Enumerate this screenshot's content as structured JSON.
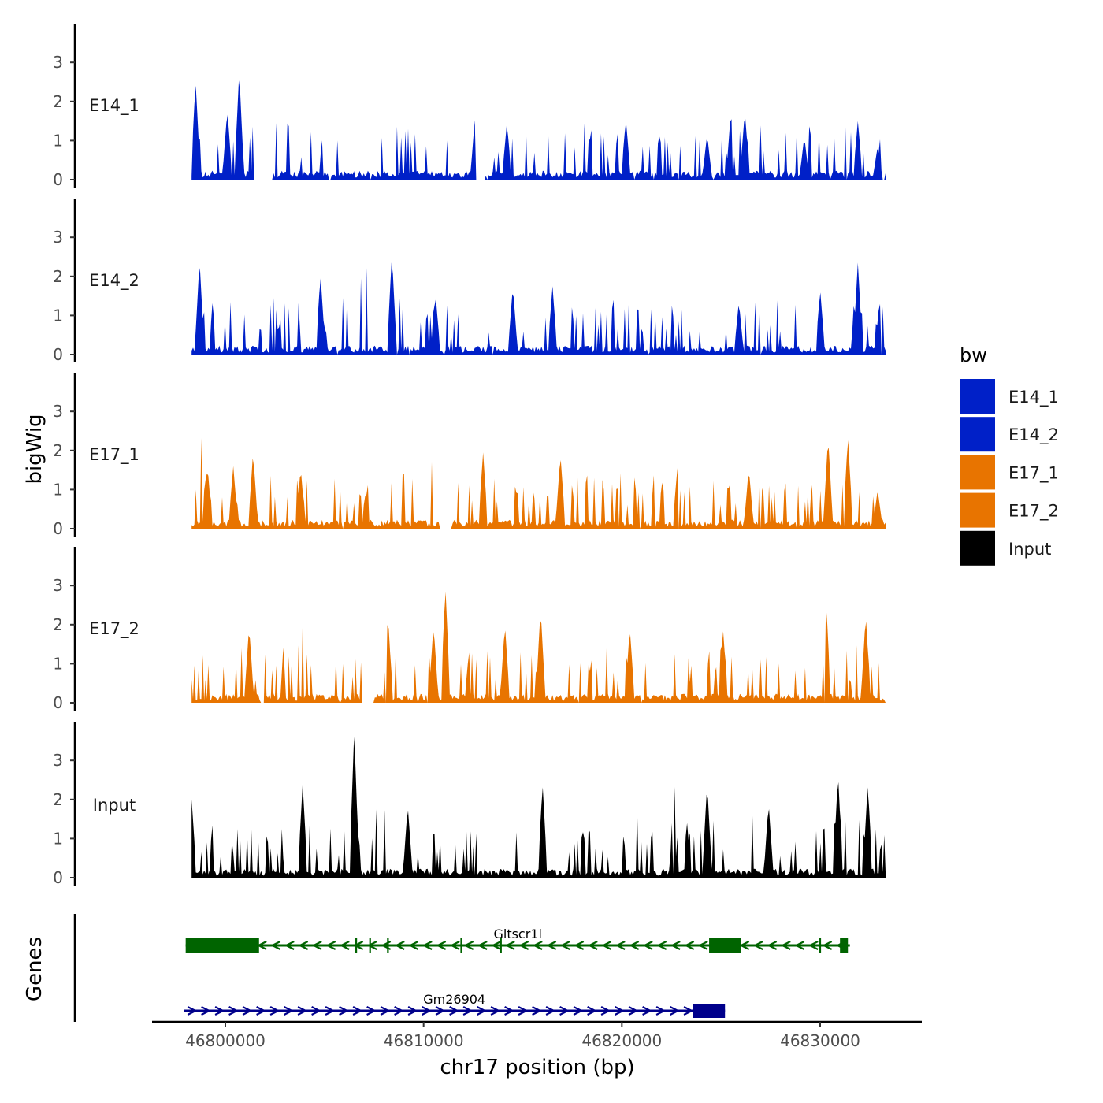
{
  "chart_data": {
    "type": "area",
    "ylabel": "bigWig",
    "genes_label": "Genes",
    "xlabel": "chr17 position (bp)",
    "x_range": [
      46798000,
      46833500
    ],
    "x_ticks": [
      {
        "value": 46800000,
        "label": "46800000"
      },
      {
        "value": 46810000,
        "label": "46810000"
      },
      {
        "value": 46820000,
        "label": "46820000"
      },
      {
        "value": 46830000,
        "label": "46830000"
      }
    ],
    "ylim": [
      0,
      3.9
    ],
    "y_ticks": [
      {
        "value": 0,
        "label": "0"
      },
      {
        "value": 1,
        "label": "1"
      },
      {
        "value": 2,
        "label": "2"
      },
      {
        "value": 3,
        "label": "3"
      }
    ],
    "legend": {
      "title": "bw",
      "placement": "right",
      "entries": [
        {
          "label": "E14_1",
          "color": "#0020c8"
        },
        {
          "label": "E14_2",
          "color": "#0020c8"
        },
        {
          "label": "E17_1",
          "color": "#e87400"
        },
        {
          "label": "E17_2",
          "color": "#e87400"
        },
        {
          "label": "Input",
          "color": "#000000"
        }
      ]
    },
    "tracks": [
      {
        "name": "E14_1",
        "color": "#0020c8",
        "seed": 11,
        "gaps": [
          [
            46801400,
            46802400
          ],
          [
            46812600,
            46813100
          ]
        ],
        "peaks": [
          [
            46798500,
            2.5
          ],
          [
            46800700,
            2.75
          ],
          [
            46800100,
            1.8
          ],
          [
            46812600,
            1.65
          ],
          [
            46814200,
            1.45
          ],
          [
            46820200,
            1.55
          ],
          [
            46824300,
            1.15
          ],
          [
            46825500,
            1.75
          ],
          [
            46826200,
            1.75
          ],
          [
            46829200,
            1.1
          ],
          [
            46831900,
            1.5
          ],
          [
            46832900,
            0.85
          ]
        ]
      },
      {
        "name": "E14_2",
        "color": "#0020c8",
        "seed": 23,
        "gaps": [],
        "peaks": [
          [
            46798700,
            2.4
          ],
          [
            46808400,
            2.55
          ],
          [
            46804800,
            2.05
          ],
          [
            46810600,
            1.55
          ],
          [
            46814500,
            1.75
          ],
          [
            46816500,
            1.75
          ],
          [
            46825900,
            1.35
          ],
          [
            46830000,
            1.65
          ],
          [
            46831900,
            2.35
          ],
          [
            46833000,
            1.4
          ]
        ]
      },
      {
        "name": "E17_1",
        "color": "#e87400",
        "seed": 37,
        "gaps": [
          [
            46810800,
            46811400
          ]
        ],
        "peaks": [
          [
            46799100,
            1.6
          ],
          [
            46800400,
            1.6
          ],
          [
            46801400,
            1.95
          ],
          [
            46803800,
            1.55
          ],
          [
            46813000,
            1.95
          ],
          [
            46816900,
            1.9
          ],
          [
            46822800,
            1.55
          ],
          [
            46826400,
            1.55
          ],
          [
            46830400,
            2.35
          ],
          [
            46831400,
            2.35
          ],
          [
            46832900,
            1.0
          ]
        ]
      },
      {
        "name": "E17_2",
        "color": "#e87400",
        "seed": 53,
        "gaps": [
          [
            46801800,
            46802000
          ],
          [
            46806900,
            46807500
          ]
        ],
        "peaks": [
          [
            46801200,
            1.95
          ],
          [
            46808200,
            2.25
          ],
          [
            46810500,
            2.0
          ],
          [
            46811100,
            2.95
          ],
          [
            46815900,
            2.4
          ],
          [
            46814100,
            2.0
          ],
          [
            46820400,
            1.9
          ],
          [
            46825100,
            1.9
          ],
          [
            46830300,
            2.6
          ],
          [
            46832300,
            2.25
          ]
        ]
      },
      {
        "name": "Input",
        "color": "#000000",
        "seed": 71,
        "gaps": [],
        "peaks": [
          [
            46806500,
            3.75
          ],
          [
            46803900,
            2.4
          ],
          [
            46816000,
            2.4
          ],
          [
            46824300,
            2.4
          ],
          [
            46827400,
            1.9
          ],
          [
            46830900,
            2.65
          ],
          [
            46832400,
            2.4
          ],
          [
            46798300,
            2.0
          ],
          [
            46809200,
            1.85
          ]
        ]
      }
    ],
    "genes": [
      {
        "name": "Gltscr1l",
        "color": "#006400",
        "strand": "-",
        "start": 46798000,
        "end": 46831500,
        "row": 1,
        "exons": [
          [
            46798000,
            46801700
          ],
          [
            46824400,
            46826000
          ],
          [
            46831000,
            46831400
          ]
        ],
        "ticks": [
          46806600,
          46807300,
          46808200,
          46811900,
          46813900,
          46830000
        ]
      },
      {
        "name": "Gm26904",
        "color": "#00008b",
        "strand": "+",
        "start": 46797900,
        "end": 46825200,
        "row": 2,
        "exons": [
          [
            46823600,
            46825200
          ]
        ],
        "ticks": []
      }
    ]
  }
}
